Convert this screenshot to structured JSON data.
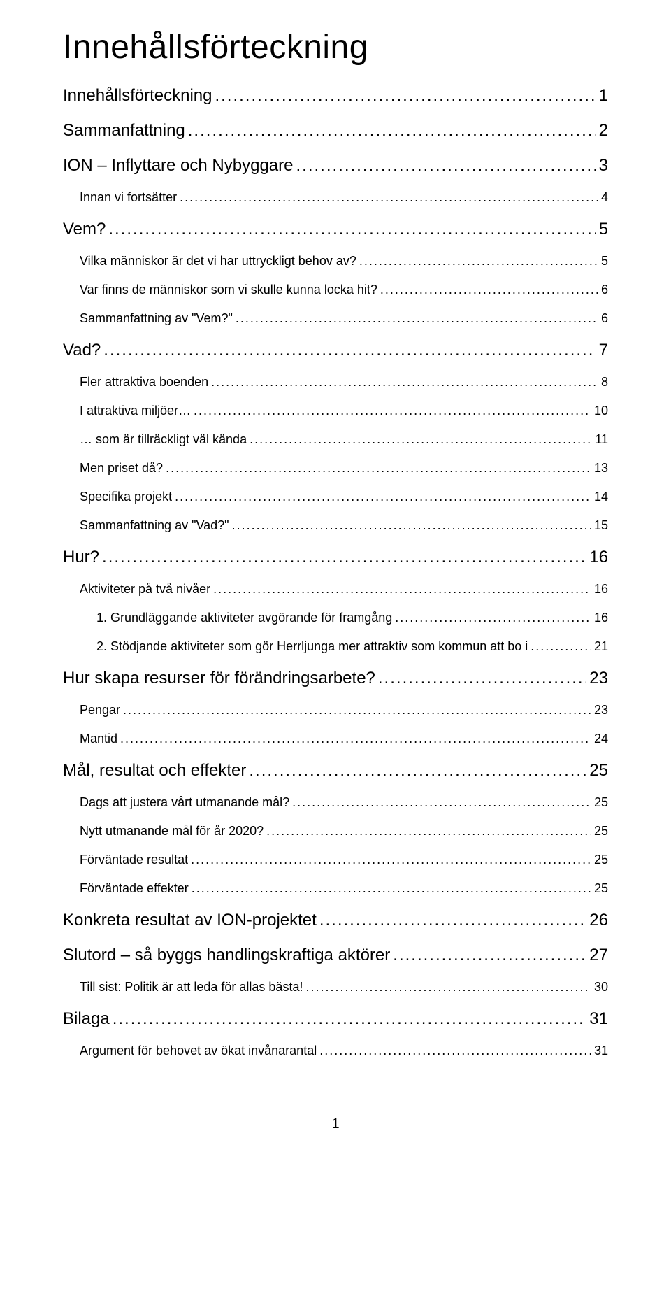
{
  "title": "Innehållsförteckning",
  "toc": [
    {
      "level": 1,
      "label": "Innehållsförteckning",
      "page": "1"
    },
    {
      "level": 1,
      "label": "Sammanfattning",
      "page": "2"
    },
    {
      "level": 1,
      "label": "ION – Inflyttare och Nybyggare",
      "page": "3"
    },
    {
      "level": 2,
      "label": "Innan vi fortsätter",
      "page": "4"
    },
    {
      "level": 1,
      "label": "Vem?",
      "page": "5"
    },
    {
      "level": 2,
      "label": "Vilka människor är det vi har uttryckligt behov av?",
      "page": "5"
    },
    {
      "level": 2,
      "label": "Var finns de människor som vi skulle kunna locka hit?",
      "page": "6"
    },
    {
      "level": 2,
      "label": "Sammanfattning av \"Vem?\"",
      "page": "6"
    },
    {
      "level": 1,
      "label": "Vad?",
      "page": "7"
    },
    {
      "level": 2,
      "label": "Fler attraktiva boenden",
      "page": "8"
    },
    {
      "level": 2,
      "label": "I attraktiva miljöer…",
      "page": "10"
    },
    {
      "level": 2,
      "label": "… som är tillräckligt väl kända",
      "page": "11"
    },
    {
      "level": 2,
      "label": "Men priset då?",
      "page": "13"
    },
    {
      "level": 2,
      "label": "Specifika projekt",
      "page": "14"
    },
    {
      "level": 2,
      "label": "Sammanfattning av \"Vad?\"",
      "page": "15"
    },
    {
      "level": 1,
      "label": "Hur?",
      "page": "16"
    },
    {
      "level": 2,
      "label": "Aktiviteter på två nivåer",
      "page": "16"
    },
    {
      "level": 3,
      "label": "1. Grundläggande aktiviteter avgörande för framgång",
      "page": "16"
    },
    {
      "level": 3,
      "label": "2. Stödjande aktiviteter som gör Herrljunga mer attraktiv som kommun att bo i",
      "page": "21"
    },
    {
      "level": 1,
      "label": "Hur skapa resurser för förändringsarbete?",
      "page": "23"
    },
    {
      "level": 2,
      "label": "Pengar",
      "page": "23"
    },
    {
      "level": 2,
      "label": "Mantid",
      "page": "24"
    },
    {
      "level": 1,
      "label": "Mål, resultat och effekter",
      "page": "25"
    },
    {
      "level": 2,
      "label": "Dags att justera vårt utmanande mål?",
      "page": "25"
    },
    {
      "level": 2,
      "label": "Nytt utmanande mål för år 2020?",
      "page": "25"
    },
    {
      "level": 2,
      "label": "Förväntade resultat",
      "page": "25"
    },
    {
      "level": 2,
      "label": "Förväntade effekter",
      "page": "25"
    },
    {
      "level": 1,
      "label": "Konkreta resultat av ION-projektet",
      "page": "26"
    },
    {
      "level": 1,
      "label": "Slutord – så byggs handlingskraftiga aktörer",
      "page": "27"
    },
    {
      "level": 2,
      "label": "Till sist: Politik är att leda för allas bästa!",
      "page": "30"
    },
    {
      "level": 1,
      "label": "Bilaga",
      "page": "31"
    },
    {
      "level": 2,
      "label": "Argument för behovet av ökat invånarantal",
      "page": "31"
    }
  ],
  "footer_page": "1",
  "colors": {
    "text": "#000000",
    "background": "#ffffff"
  },
  "typography": {
    "title_fontsize": 48,
    "level1_fontsize": 24,
    "level2_fontsize": 18,
    "level3_fontsize": 18,
    "font_family": "Century Gothic / geometric sans"
  }
}
